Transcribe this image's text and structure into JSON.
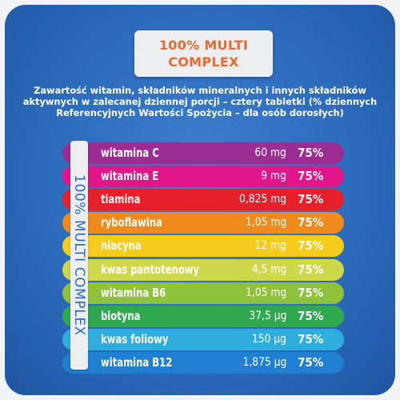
{
  "badge": {
    "line1": "100% MULTI",
    "line2": "COMPLEX"
  },
  "intro_text": "Zawartość witamin, składników mineralnych i innych składników aktywnych w zalecanej dziennej porcji – cztery tabletki (% dziennych Referencyjnych Wartości Spożycia – dla osób dorosłych)",
  "side_label": "100% MULTI COMPLEX",
  "rows": [
    {
      "name": "witamina C",
      "amount": "60 mg",
      "percent": "75%",
      "color": "#9b2d92",
      "text": "light"
    },
    {
      "name": "witamina E",
      "amount": "9 mg",
      "percent": "75%",
      "color": "#e0168a",
      "text": "light"
    },
    {
      "name": "tiamina",
      "amount": "0,825 mg",
      "percent": "75%",
      "color": "#e5202b",
      "text": "light"
    },
    {
      "name": "ryboflawina",
      "amount": "1,05 mg",
      "percent": "75%",
      "color": "#f08a1d",
      "text": "light"
    },
    {
      "name": "niacyna",
      "amount": "12 mg",
      "percent": "75%",
      "color": "#f6cc1c",
      "text": "light"
    },
    {
      "name": "kwas pantotenowy",
      "amount": "4,5 mg",
      "percent": "75%",
      "color": "#cfd84a",
      "text": "light"
    },
    {
      "name": "witamina B6",
      "amount": "1,05 mg",
      "percent": "75%",
      "color": "#8fc23b",
      "text": "light"
    },
    {
      "name": "biotyna",
      "amount": "37,5 µg",
      "percent": "75%",
      "color": "#2fa84f",
      "text": "light"
    },
    {
      "name": "kwas foliowy",
      "amount": "150 µg",
      "percent": "75%",
      "color": "#2faede",
      "text": "light"
    },
    {
      "name": "witamina B12",
      "amount": "1,875 µg",
      "percent": "75%",
      "color": "#1f7fd0",
      "text": "light"
    }
  ]
}
